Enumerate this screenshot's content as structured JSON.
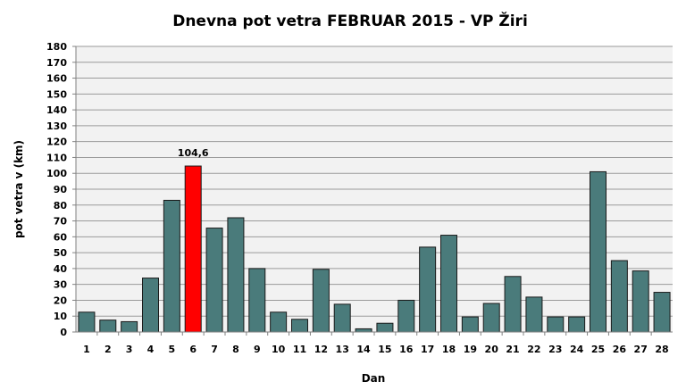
{
  "chart_data": {
    "type": "bar",
    "title": "Dnevna pot vetra FEBRUAR 2015 - VP Žiri",
    "xlabel": "Dan",
    "ylabel": "pot vetra  v (km)",
    "ylim": [
      0,
      180
    ],
    "yticks": [
      0,
      10,
      20,
      30,
      40,
      50,
      60,
      70,
      80,
      90,
      100,
      110,
      120,
      130,
      140,
      150,
      160,
      170,
      180
    ],
    "grid": true,
    "categories": [
      "1",
      "2",
      "3",
      "4",
      "5",
      "6",
      "7",
      "8",
      "9",
      "10",
      "11",
      "12",
      "13",
      "14",
      "15",
      "16",
      "17",
      "18",
      "19",
      "20",
      "21",
      "22",
      "23",
      "24",
      "25",
      "26",
      "27",
      "28"
    ],
    "values": [
      12.5,
      7.5,
      6.5,
      34,
      83,
      104.6,
      65.5,
      72,
      40,
      12.5,
      8,
      39.5,
      17.5,
      2,
      5.5,
      20,
      53.5,
      61,
      9.5,
      18,
      35,
      22,
      9.5,
      9.5,
      101,
      45,
      38.5,
      25
    ],
    "highlight": {
      "index": 5,
      "label": "104,6",
      "color": "#ff0000"
    },
    "colors": {
      "bar": "#4a7b7b",
      "bar_stroke": "#1a1a1a",
      "highlight_stroke": "#1a1a1a",
      "plot_bg": "#f2f2f2",
      "grid": "#9a9a9a"
    }
  }
}
